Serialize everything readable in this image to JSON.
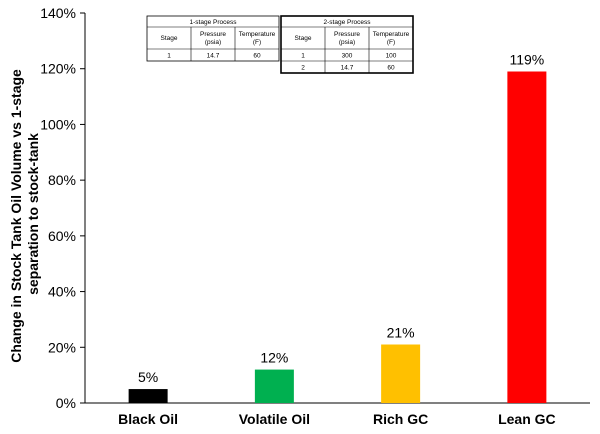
{
  "chart_data": {
    "type": "bar",
    "categories": [
      "Black Oil",
      "Volatile Oil",
      "Rich GC",
      "Lean GC"
    ],
    "values": [
      5,
      12,
      21,
      119
    ],
    "data_labels": [
      "5%",
      "12%",
      "21%",
      "119%"
    ],
    "colors": [
      "#000000",
      "#00b050",
      "#ffc000",
      "#ff0000"
    ],
    "title": "",
    "xlabel": "",
    "ylabel_lines": [
      "Change in Stock Tank Oil Volume vs 1-stage",
      "separation to stock-tank"
    ],
    "ylim": [
      0,
      140
    ],
    "yticks": [
      0,
      20,
      40,
      60,
      80,
      100,
      120,
      140
    ],
    "ytick_labels": [
      "0%",
      "20%",
      "40%",
      "60%",
      "80%",
      "100%",
      "120%",
      "140%"
    ],
    "grid": false,
    "legend": "none"
  },
  "process_table": {
    "one_stage": {
      "title": "1-stage Process",
      "headers": [
        "Stage",
        "Pressure (psia)",
        "Temperature (F)"
      ],
      "header_lines": [
        [
          "Stage"
        ],
        [
          "Pressure",
          "(psia)"
        ],
        [
          "Temperature",
          "(F)"
        ]
      ],
      "rows": [
        [
          "1",
          "14.7",
          "60"
        ]
      ]
    },
    "two_stage": {
      "title": "2-stage Process",
      "headers": [
        "Stage",
        "Pressure (psia)",
        "Temperature (F)"
      ],
      "header_lines": [
        [
          "Stage"
        ],
        [
          "Pressure",
          "(psia)"
        ],
        [
          "Temperature",
          "(F)"
        ]
      ],
      "rows": [
        [
          "1",
          "300",
          "100"
        ],
        [
          "2",
          "14.7",
          "60"
        ]
      ]
    }
  }
}
